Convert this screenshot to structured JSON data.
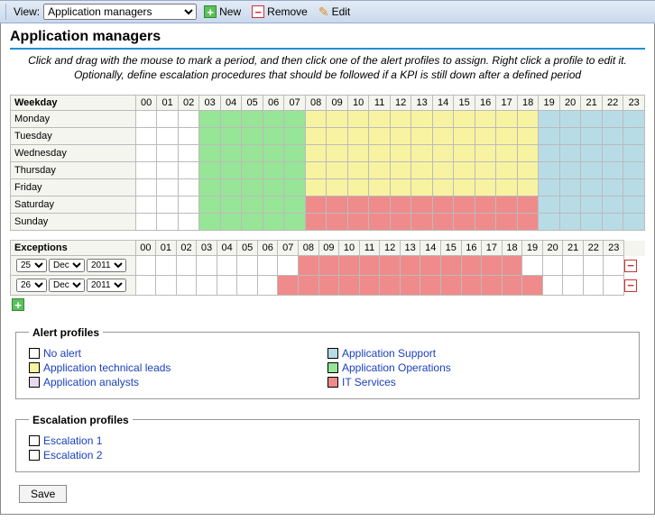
{
  "toolbar": {
    "view_label": "View:",
    "view_options": [
      "Application managers"
    ],
    "view_selected": "Application managers",
    "new_label": "New",
    "remove_label": "Remove",
    "edit_label": "Edit"
  },
  "page": {
    "title": "Application managers",
    "hint": "Click and drag with the mouse to mark a period, and then click one of the alert profiles to assign. Right click a profile to edit it. Optionally, define escalation procedures that should be followed if a KPI is still down after a defined period"
  },
  "hours": [
    "00",
    "01",
    "02",
    "03",
    "04",
    "05",
    "06",
    "07",
    "08",
    "09",
    "10",
    "11",
    "12",
    "13",
    "14",
    "15",
    "16",
    "17",
    "18",
    "19",
    "20",
    "21",
    "22",
    "23"
  ],
  "colors": {
    "blank": "#ffffff",
    "green": "#97e597",
    "yellow": "#f8f3a1",
    "red": "#f08b8b",
    "blue": "#b7dce6",
    "purple": "#e8d9f2"
  },
  "weekday_header": "Weekday",
  "weekdays": [
    {
      "name": "Monday",
      "cells": [
        "blank",
        "blank",
        "blank",
        "green",
        "green",
        "green",
        "green",
        "green",
        "yellow",
        "yellow",
        "yellow",
        "yellow",
        "yellow",
        "yellow",
        "yellow",
        "yellow",
        "yellow",
        "yellow",
        "yellow",
        "blue",
        "blue",
        "blue",
        "blue",
        "blue"
      ]
    },
    {
      "name": "Tuesday",
      "cells": [
        "blank",
        "blank",
        "blank",
        "green",
        "green",
        "green",
        "green",
        "green",
        "yellow",
        "yellow",
        "yellow",
        "yellow",
        "yellow",
        "yellow",
        "yellow",
        "yellow",
        "yellow",
        "yellow",
        "yellow",
        "blue",
        "blue",
        "blue",
        "blue",
        "blue"
      ]
    },
    {
      "name": "Wednesday",
      "cells": [
        "blank",
        "blank",
        "blank",
        "green",
        "green",
        "green",
        "green",
        "green",
        "yellow",
        "yellow",
        "yellow",
        "yellow",
        "yellow",
        "yellow",
        "yellow",
        "yellow",
        "yellow",
        "yellow",
        "yellow",
        "blue",
        "blue",
        "blue",
        "blue",
        "blue"
      ]
    },
    {
      "name": "Thursday",
      "cells": [
        "blank",
        "blank",
        "blank",
        "green",
        "green",
        "green",
        "green",
        "green",
        "yellow",
        "yellow",
        "yellow",
        "yellow",
        "yellow",
        "yellow",
        "yellow",
        "yellow",
        "yellow",
        "yellow",
        "yellow",
        "blue",
        "blue",
        "blue",
        "blue",
        "blue"
      ]
    },
    {
      "name": "Friday",
      "cells": [
        "blank",
        "blank",
        "blank",
        "green",
        "green",
        "green",
        "green",
        "green",
        "yellow",
        "yellow",
        "yellow",
        "yellow",
        "yellow",
        "yellow",
        "yellow",
        "yellow",
        "yellow",
        "yellow",
        "yellow",
        "blue",
        "blue",
        "blue",
        "blue",
        "blue"
      ]
    },
    {
      "name": "Saturday",
      "cells": [
        "blank",
        "blank",
        "blank",
        "green",
        "green",
        "green",
        "green",
        "green",
        "red",
        "red",
        "red",
        "red",
        "red",
        "red",
        "red",
        "red",
        "red",
        "red",
        "red",
        "blue",
        "blue",
        "blue",
        "blue",
        "blue"
      ]
    },
    {
      "name": "Sunday",
      "cells": [
        "blank",
        "blank",
        "blank",
        "green",
        "green",
        "green",
        "green",
        "green",
        "red",
        "red",
        "red",
        "red",
        "red",
        "red",
        "red",
        "red",
        "red",
        "red",
        "red",
        "blue",
        "blue",
        "blue",
        "blue",
        "blue"
      ]
    }
  ],
  "exceptions_header": "Exceptions",
  "exceptions": [
    {
      "day": "25",
      "month": "Dec",
      "year": "2011",
      "cells": [
        "blank",
        "blank",
        "blank",
        "blank",
        "blank",
        "blank",
        "blank",
        "blank",
        "red",
        "red",
        "red",
        "red",
        "red",
        "red",
        "red",
        "red",
        "red",
        "red",
        "red",
        "blank",
        "blank",
        "blank",
        "blank",
        "blank"
      ]
    },
    {
      "day": "26",
      "month": "Dec",
      "year": "2011",
      "cells": [
        "blank",
        "blank",
        "blank",
        "blank",
        "blank",
        "blank",
        "blank",
        "red",
        "red",
        "red",
        "red",
        "red",
        "red",
        "red",
        "red",
        "red",
        "red",
        "red",
        "red",
        "red",
        "blank",
        "blank",
        "blank",
        "blank"
      ]
    }
  ],
  "alert_profiles_header": "Alert profiles",
  "alert_profiles": [
    {
      "label": "No alert",
      "color": "#ffffff"
    },
    {
      "label": "Application Support",
      "color": "#b7dce6"
    },
    {
      "label": "Application technical leads",
      "color": "#f8f3a1"
    },
    {
      "label": "Application Operations",
      "color": "#97e597"
    },
    {
      "label": "Application analysts",
      "color": "#e8d9f2"
    },
    {
      "label": "IT Services",
      "color": "#f08b8b"
    }
  ],
  "escalation_header": "Escalation profiles",
  "escalation_profiles": [
    {
      "label": "Escalation 1",
      "color": "#ffffff"
    },
    {
      "label": "Escalation 2",
      "color": "#ffffff"
    }
  ],
  "save_label": "Save"
}
